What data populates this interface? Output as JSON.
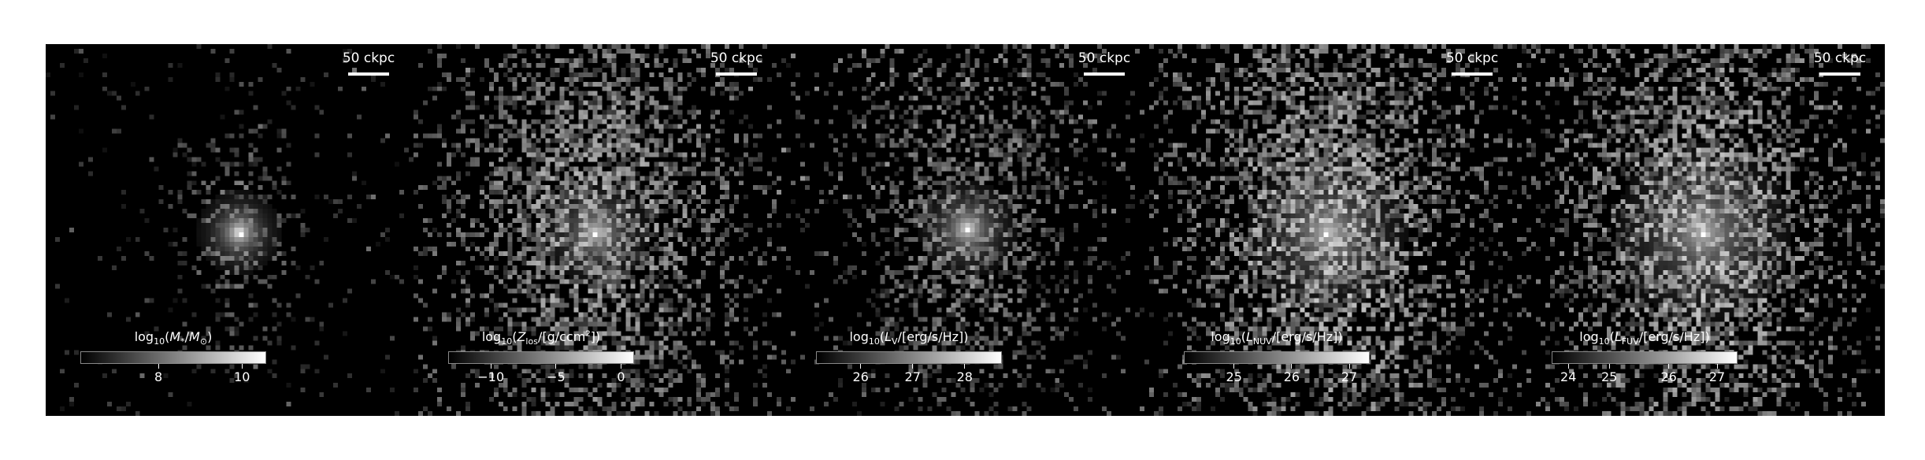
{
  "scale_bar_label": "50 ckpc",
  "panels": [
    {
      "id": "stellar-mass",
      "colorbar": {
        "prefix": "log",
        "sub": "10",
        "body_html": "(<i>M</i><sub>*</sub>/<i>M</i><sub>⊙</sub>)"
      },
      "ticks": [
        {
          "label": "8",
          "frac": 0.42
        },
        {
          "label": "10",
          "frac": 0.87
        }
      ]
    },
    {
      "id": "metal-surface-density",
      "colorbar": {
        "prefix": "log",
        "sub": "10",
        "body_html": "(<i>Z</i><sub>los</sub>/[g/ccm<sup>2</sup>])"
      },
      "ticks": [
        {
          "label": "−10",
          "frac": 0.23
        },
        {
          "label": "−5",
          "frac": 0.58
        },
        {
          "label": "0",
          "frac": 0.93
        }
      ]
    },
    {
      "id": "v-band-luminosity",
      "colorbar": {
        "prefix": "log",
        "sub": "10",
        "body_html": "(<i>L</i><sub>V</sub>/[erg/s/Hz])"
      },
      "ticks": [
        {
          "label": "26",
          "frac": 0.24
        },
        {
          "label": "27",
          "frac": 0.52
        },
        {
          "label": "28",
          "frac": 0.8
        }
      ]
    },
    {
      "id": "nuv-luminosity",
      "colorbar": {
        "prefix": "log",
        "sub": "10",
        "body_html": "(<i>L</i><sub>NUV</sub>/[erg/s/Hz])"
      },
      "ticks": [
        {
          "label": "25",
          "frac": 0.27
        },
        {
          "label": "26",
          "frac": 0.58
        },
        {
          "label": "27",
          "frac": 0.89
        }
      ]
    },
    {
      "id": "fuv-luminosity",
      "colorbar": {
        "prefix": "log",
        "sub": "10",
        "body_html": "(<i>L</i><sub>FUV</sub>/[erg/s/Hz])"
      },
      "ticks": [
        {
          "label": "24",
          "frac": 0.09
        },
        {
          "label": "25",
          "frac": 0.31
        },
        {
          "label": "26",
          "frac": 0.63
        },
        {
          "label": "27",
          "frac": 0.89
        }
      ]
    }
  ]
}
